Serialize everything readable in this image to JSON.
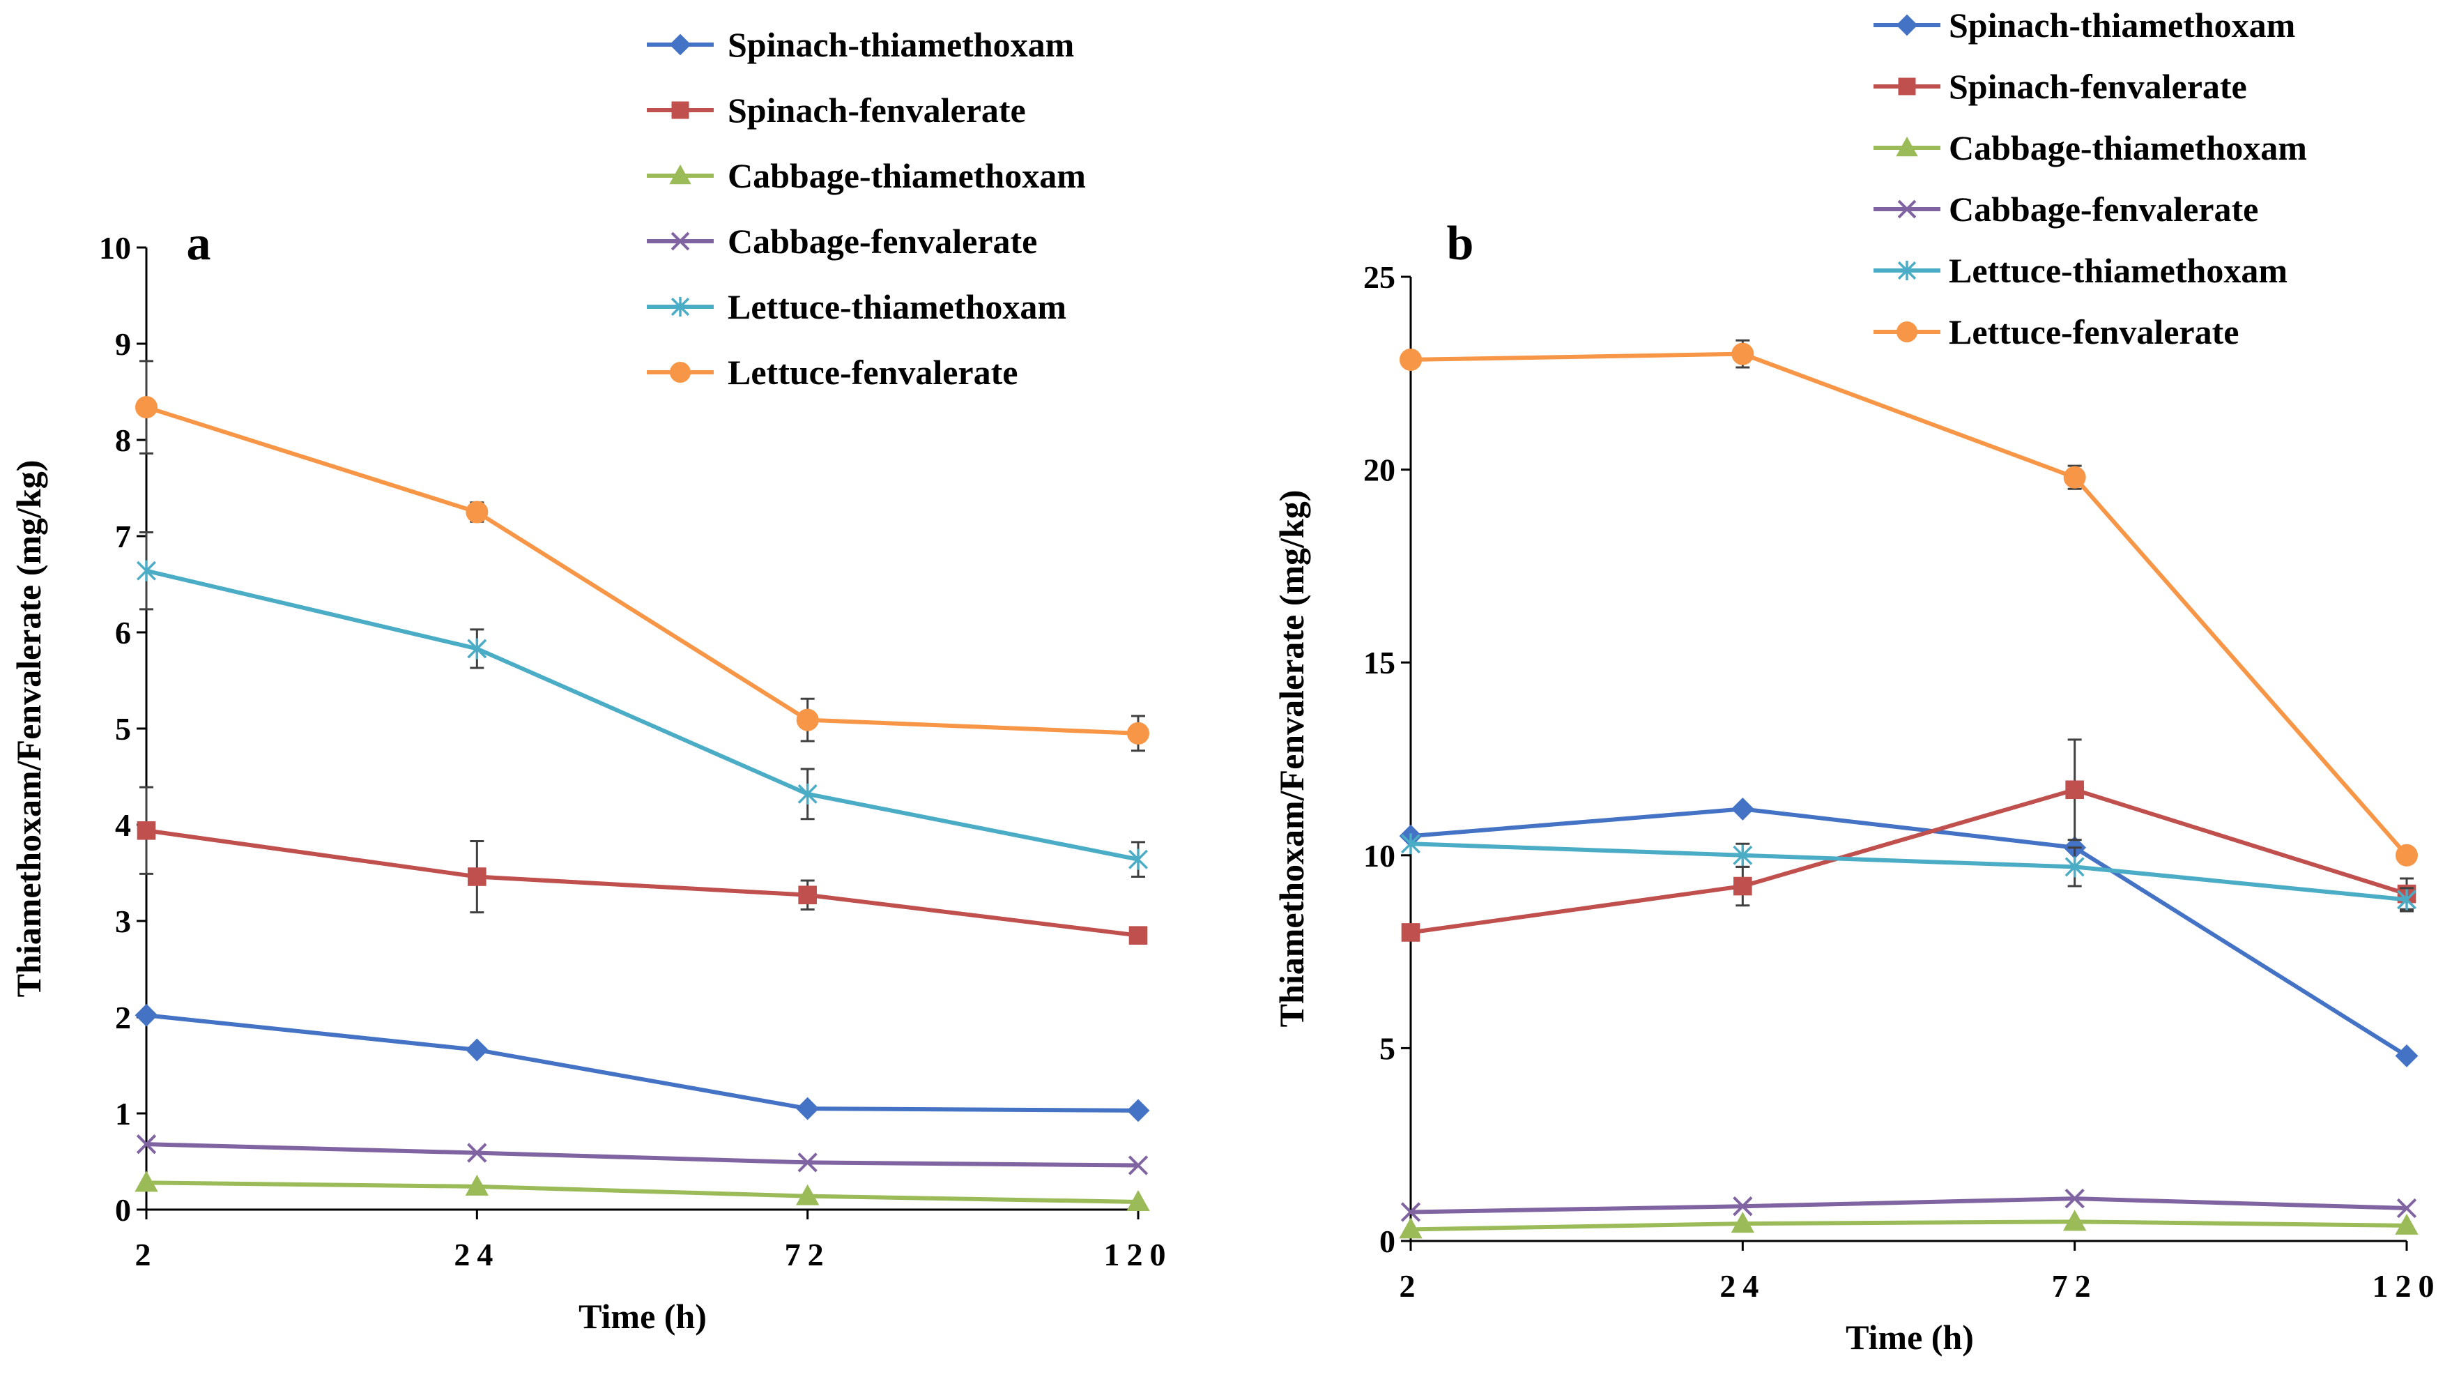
{
  "chart_data": [
    {
      "type": "line",
      "panel_label": "a",
      "categories": [
        "2",
        "24",
        "72",
        "120"
      ],
      "xlabel": "Time (h)",
      "ylabel": "Thiamethoxam/Fenvalerate (mg/kg)",
      "ylim": [
        0,
        10
      ],
      "yticks": [
        "0",
        "1",
        "2",
        "3",
        "4",
        "5",
        "6",
        "7",
        "8",
        "9",
        "10"
      ],
      "grid": false,
      "legend_position": "top",
      "series": [
        {
          "name": "Spinach-thiamethoxam",
          "color": "#4472C4",
          "marker": "diamond",
          "values": [
            2.02,
            1.66,
            1.05,
            1.03
          ],
          "errors": [
            0,
            0,
            0,
            0
          ]
        },
        {
          "name": "Spinach-fenvalerate",
          "color": "#C0504D",
          "marker": "square",
          "values": [
            3.94,
            3.46,
            3.27,
            2.85
          ],
          "errors": [
            0.45,
            0.37,
            0.15,
            0
          ]
        },
        {
          "name": "Cabbage-thiamethoxam",
          "color": "#9BBB59",
          "marker": "triangle",
          "values": [
            0.28,
            0.24,
            0.14,
            0.08
          ],
          "errors": [
            0,
            0,
            0,
            0
          ]
        },
        {
          "name": "Cabbage-fenvalerate",
          "color": "#8064A2",
          "marker": "x",
          "values": [
            0.68,
            0.59,
            0.49,
            0.46
          ],
          "errors": [
            0,
            0,
            0,
            0
          ]
        },
        {
          "name": "Lettuce-thiamethoxam",
          "color": "#4BACC6",
          "marker": "asterisk",
          "values": [
            6.64,
            5.83,
            4.32,
            3.64
          ],
          "errors": [
            0.4,
            0.2,
            0.26,
            0.18
          ]
        },
        {
          "name": "Lettuce-fenvalerate",
          "color": "#F79646",
          "marker": "circle",
          "values": [
            8.34,
            7.25,
            5.09,
            4.95
          ],
          "errors": [
            0.48,
            0.1,
            0.22,
            0.18
          ]
        }
      ]
    },
    {
      "type": "line",
      "panel_label": "b",
      "categories": [
        "2",
        "24",
        "72",
        "120"
      ],
      "xlabel": "Time (h)",
      "ylabel": "Thiamethoxam/Fenvalerate (mg/kg)",
      "ylim": [
        0,
        25
      ],
      "yticks": [
        "0",
        "5",
        "10",
        "15",
        "20",
        "25"
      ],
      "grid": false,
      "legend_position": "top",
      "series": [
        {
          "name": "Spinach-thiamethoxam",
          "color": "#4472C4",
          "marker": "diamond",
          "values": [
            10.5,
            11.2,
            10.2,
            4.8
          ],
          "errors": [
            0,
            0,
            0,
            0
          ]
        },
        {
          "name": "Spinach-fenvalerate",
          "color": "#C0504D",
          "marker": "square",
          "values": [
            8.0,
            9.2,
            11.7,
            9.0
          ],
          "errors": [
            0,
            0.5,
            1.3,
            0.4
          ]
        },
        {
          "name": "Cabbage-thiamethoxam",
          "color": "#9BBB59",
          "marker": "triangle",
          "values": [
            0.3,
            0.45,
            0.5,
            0.4
          ],
          "errors": [
            0,
            0,
            0,
            0
          ]
        },
        {
          "name": "Cabbage-fenvalerate",
          "color": "#8064A2",
          "marker": "x",
          "values": [
            0.75,
            0.9,
            1.1,
            0.85
          ],
          "errors": [
            0,
            0,
            0,
            0
          ]
        },
        {
          "name": "Lettuce-thiamethoxam",
          "color": "#4BACC6",
          "marker": "asterisk",
          "values": [
            10.3,
            10.0,
            9.7,
            8.85
          ],
          "errors": [
            0,
            0.3,
            0.5,
            0.3
          ]
        },
        {
          "name": "Lettuce-fenvalerate",
          "color": "#F79646",
          "marker": "circle",
          "values": [
            22.85,
            23.0,
            19.8,
            10.0
          ],
          "errors": [
            0,
            0.35,
            0.3,
            0
          ]
        }
      ]
    }
  ]
}
